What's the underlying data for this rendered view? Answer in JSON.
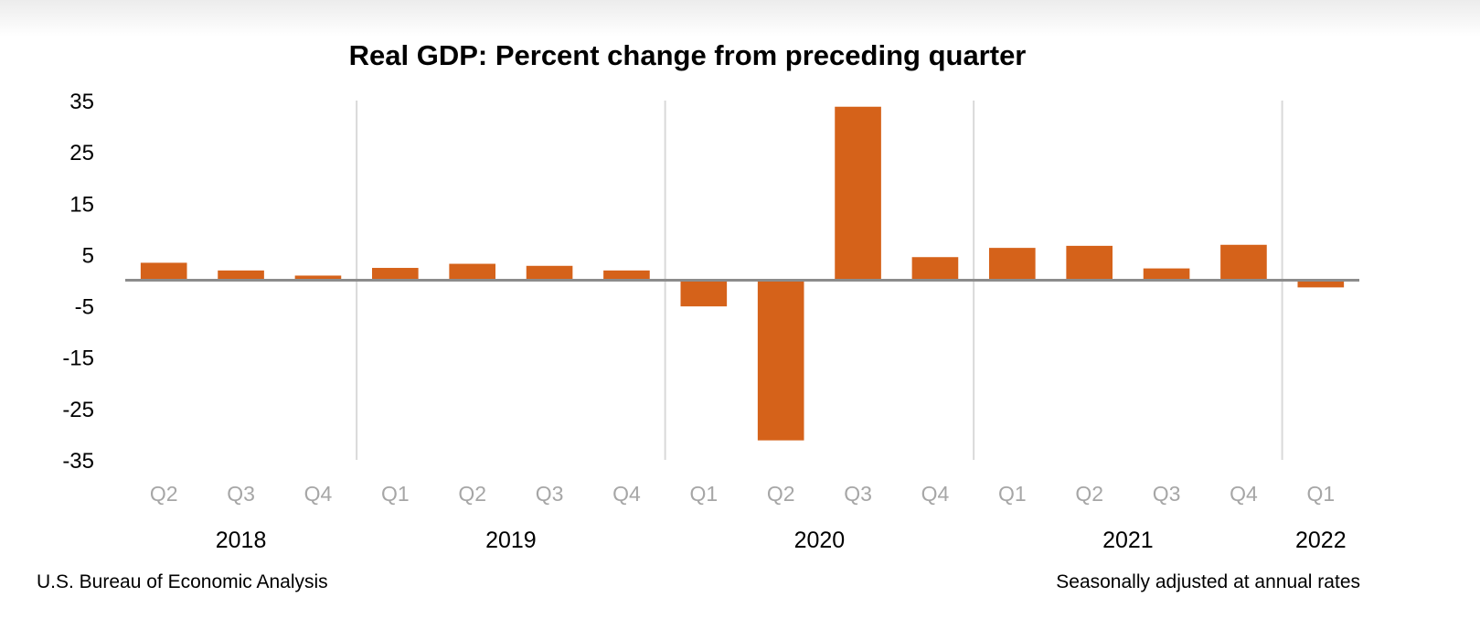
{
  "chart_data": {
    "type": "bar",
    "title": "Real GDP:  Percent change from preceding quarter",
    "xlabel": "",
    "ylabel": "",
    "ylim": [
      -35,
      35
    ],
    "yticks": [
      35,
      25,
      15,
      5,
      -5,
      -15,
      -25,
      -35
    ],
    "grid": false,
    "bar_color": "#d5621a",
    "categories": [
      "Q2",
      "Q3",
      "Q4",
      "Q1",
      "Q2",
      "Q3",
      "Q4",
      "Q1",
      "Q2",
      "Q3",
      "Q4",
      "Q1",
      "Q2",
      "Q3",
      "Q4",
      "Q1"
    ],
    "years": [
      {
        "label": "2018",
        "start": 0,
        "count": 3
      },
      {
        "label": "2019",
        "start": 3,
        "count": 4
      },
      {
        "label": "2020",
        "start": 7,
        "count": 4
      },
      {
        "label": "2021",
        "start": 11,
        "count": 4
      },
      {
        "label": "2022",
        "start": 15,
        "count": 1
      }
    ],
    "series": [
      {
        "name": "Real GDP percent change",
        "values": [
          3.4,
          1.9,
          0.9,
          2.4,
          3.2,
          2.8,
          1.9,
          -5.1,
          -31.2,
          33.8,
          4.5,
          6.3,
          6.7,
          2.3,
          6.9,
          -1.4
        ]
      }
    ],
    "footnote_left": "U.S. Bureau of Economic Analysis",
    "footnote_right": "Seasonally adjusted at annual rates"
  }
}
